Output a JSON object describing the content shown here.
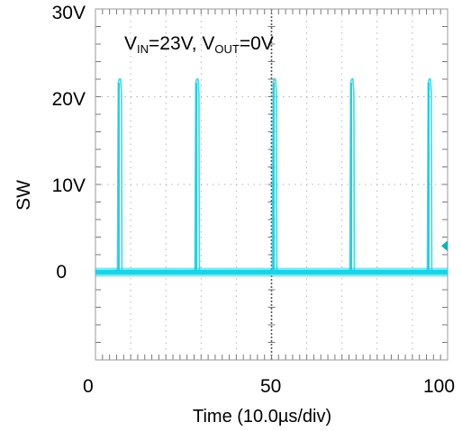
{
  "chart_data": {
    "type": "line",
    "annotation": {
      "v1": "V",
      "s1": "IN",
      "t1": "=23V, ",
      "v2": "V",
      "s2": "OUT",
      "t2": "=0V"
    },
    "xlabel": "Time (10.0µs/div)",
    "ylabel": "SW",
    "xlim": [
      0,
      100
    ],
    "ylim": [
      -10,
      30
    ],
    "x_ticks": [
      {
        "value": 0,
        "label": "0"
      },
      {
        "value": 50,
        "label": "50"
      },
      {
        "value": 100,
        "label": "100"
      }
    ],
    "y_ticks": [
      {
        "value": 30,
        "label": "30V"
      },
      {
        "value": 20,
        "label": "20V"
      },
      {
        "value": 10,
        "label": "10V"
      },
      {
        "value": 0,
        "label": "0"
      }
    ],
    "grid": true,
    "series": [
      {
        "color": "#19d3e6",
        "baseline": 0,
        "pulse_peak": 22,
        "pulse_times": [
          7,
          29,
          51,
          73,
          95
        ]
      }
    ],
    "trigger_marker": {
      "value": 3,
      "color": "#0fb3b8"
    }
  }
}
